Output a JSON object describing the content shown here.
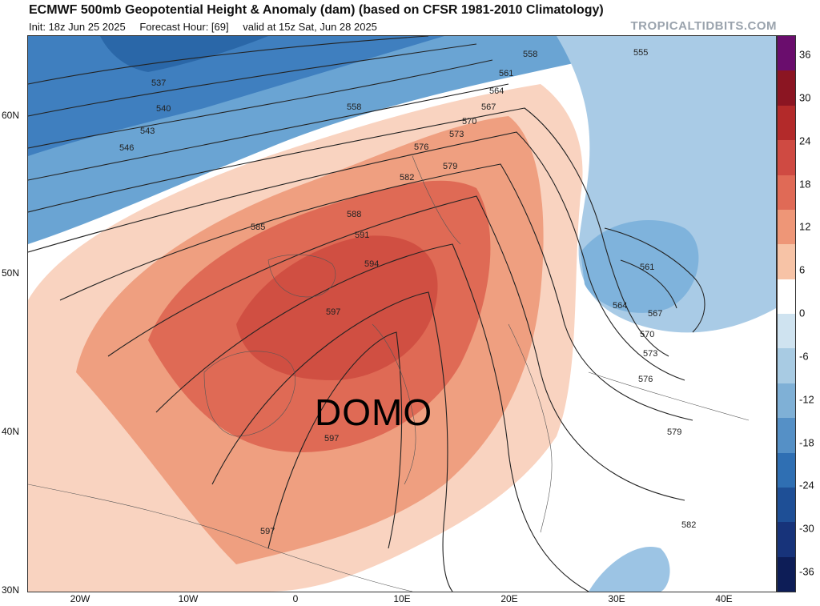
{
  "header": {
    "title": "ECMWF 500mb Geopotential Height & Anomaly (dam) (based on CFSR 1981-2010 Climatology)",
    "init": "Init: 18z Jun 25 2025",
    "forecast_hour": "Forecast Hour: [69]",
    "valid": "valid at 15z Sat, Jun 28 2025",
    "watermark": "TROPICALTIDBITS.COM"
  },
  "overlay_text": "DOMO",
  "axes": {
    "lat_labels": [
      "60N",
      "50N",
      "40N",
      "30N"
    ],
    "lon_labels": [
      "20W",
      "10W",
      "0",
      "10E",
      "20E",
      "30E",
      "40E"
    ]
  },
  "contour_labels": [
    "537",
    "540",
    "543",
    "546",
    "555",
    "558",
    "561",
    "564",
    "567",
    "570",
    "573",
    "576",
    "579",
    "582",
    "585",
    "588",
    "591",
    "594",
    "597",
    "597",
    "597",
    "558",
    "561",
    "564",
    "567",
    "570",
    "573",
    "576",
    "579",
    "582"
  ],
  "colorbar": {
    "labels": [
      "36",
      "30",
      "24",
      "18",
      "12",
      "6",
      "0",
      "-6",
      "-12",
      "-18",
      "-24",
      "-30",
      "-36"
    ],
    "colors": [
      "#6a0d6d",
      "#8b1522",
      "#b32a2a",
      "#cf4a42",
      "#e06a56",
      "#ee9677",
      "#f7c3a6",
      "#ffffff",
      "#cfe3f0",
      "#a8cbe3",
      "#7fb0d6",
      "#5590c6",
      "#2f6fb3",
      "#1e4f96",
      "#17337a",
      "#0d1d57"
    ]
  },
  "colors": {
    "strong_positive": "#d9604c",
    "moderate_positive": "#eb9274",
    "weak_positive": "#f7c6ad",
    "neutral": "#ffffff",
    "weak_negative": "#bcd8ec",
    "moderate_negative": "#8dbde0",
    "strong_negative": "#4d8ec7"
  }
}
